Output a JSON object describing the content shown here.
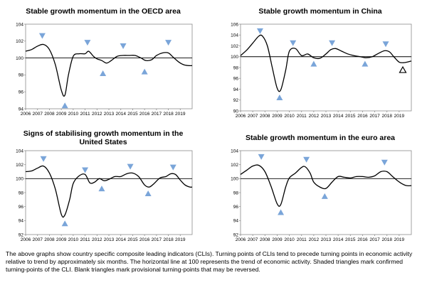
{
  "charts": [
    {
      "title": "Stable growth momentum in the OECD area",
      "chart_data": {
        "type": "line",
        "ylim": [
          94,
          104
        ],
        "yticks": [
          94,
          96,
          98,
          100,
          102,
          104
        ],
        "xlim": [
          2006,
          2020
        ],
        "xticks": [
          "2006",
          "2007",
          "2008",
          "2009",
          "2010",
          "2011",
          "2012",
          "2013",
          "2014",
          "2015",
          "2016",
          "2017",
          "2018",
          "2019"
        ],
        "baseline": 100,
        "series": [
          {
            "x": [
              2006.0,
              2006.5,
              2007.0,
              2007.5,
              2008.0,
              2008.5,
              2009.0,
              2009.3,
              2009.6,
              2010.0,
              2010.5,
              2011.0,
              2011.3,
              2011.7,
              2012.0,
              2012.4,
              2012.8,
              2013.2,
              2013.7,
              2014.2,
              2014.7,
              2015.2,
              2015.7,
              2016.1,
              2016.6,
              2017.0,
              2017.5,
              2018.0,
              2018.4,
              2018.9,
              2019.3,
              2019.7,
              2020.0
            ],
            "y": [
              100.8,
              101.0,
              101.4,
              101.6,
              101.0,
              99.2,
              96.2,
              95.6,
              98.0,
              100.2,
              100.5,
              100.5,
              100.8,
              100.2,
              99.9,
              99.7,
              99.4,
              99.7,
              100.2,
              100.3,
              100.3,
              100.3,
              100.0,
              99.7,
              99.8,
              100.3,
              100.6,
              100.6,
              100.1,
              99.5,
              99.2,
              99.1,
              99.1
            ]
          }
        ],
        "markers": [
          {
            "x": 2007.4,
            "y": 102.6,
            "dir": "down",
            "style": "filled"
          },
          {
            "x": 2009.3,
            "y": 94.4,
            "dir": "up",
            "style": "filled"
          },
          {
            "x": 2011.2,
            "y": 101.8,
            "dir": "down",
            "style": "filled"
          },
          {
            "x": 2012.5,
            "y": 98.2,
            "dir": "up",
            "style": "filled"
          },
          {
            "x": 2014.2,
            "y": 101.4,
            "dir": "down",
            "style": "filled"
          },
          {
            "x": 2016.0,
            "y": 98.4,
            "dir": "up",
            "style": "filled"
          },
          {
            "x": 2018.0,
            "y": 101.8,
            "dir": "down",
            "style": "filled"
          }
        ]
      }
    },
    {
      "title": "Stable growth momentum in China",
      "chart_data": {
        "type": "line",
        "ylim": [
          90,
          106
        ],
        "yticks": [
          90,
          92,
          94,
          96,
          98,
          100,
          102,
          104,
          106
        ],
        "xlim": [
          2006,
          2020
        ],
        "xticks": [
          "2006",
          "2007",
          "2008",
          "2009",
          "2010",
          "2011",
          "2012",
          "2013",
          "2014",
          "2015",
          "2016",
          "2017",
          "2018",
          "2019"
        ],
        "baseline": 100,
        "series": [
          {
            "x": [
              2006.0,
              2006.5,
              2007.0,
              2007.5,
              2007.8,
              2008.2,
              2008.6,
              2009.0,
              2009.3,
              2009.7,
              2010.0,
              2010.5,
              2011.0,
              2011.5,
              2012.0,
              2012.5,
              2013.0,
              2013.4,
              2013.8,
              2014.3,
              2014.8,
              2015.3,
              2015.8,
              2016.3,
              2016.8,
              2017.3,
              2017.8,
              2018.2,
              2018.6,
              2019.0,
              2019.4,
              2020.0
            ],
            "y": [
              100.2,
              101.2,
              102.5,
              103.8,
              103.8,
              102.0,
              98.0,
              94.2,
              93.9,
              97.5,
              101.0,
              101.5,
              100.2,
              100.5,
              99.8,
              99.7,
              100.5,
              101.3,
              101.5,
              101.0,
              100.5,
              100.2,
              100.0,
              99.8,
              100.0,
              100.6,
              101.1,
              100.9,
              99.9,
              99.0,
              98.9,
              99.2
            ]
          }
        ],
        "markers": [
          {
            "x": 2007.6,
            "y": 104.7,
            "dir": "down",
            "style": "filled"
          },
          {
            "x": 2009.2,
            "y": 92.5,
            "dir": "up",
            "style": "filled"
          },
          {
            "x": 2010.3,
            "y": 102.5,
            "dir": "down",
            "style": "filled"
          },
          {
            "x": 2012.0,
            "y": 98.7,
            "dir": "up",
            "style": "filled"
          },
          {
            "x": 2013.5,
            "y": 102.5,
            "dir": "down",
            "style": "filled"
          },
          {
            "x": 2016.2,
            "y": 98.7,
            "dir": "up",
            "style": "filled"
          },
          {
            "x": 2017.9,
            "y": 102.3,
            "dir": "down",
            "style": "filled"
          },
          {
            "x": 2019.3,
            "y": 97.6,
            "dir": "up",
            "style": "open"
          }
        ]
      }
    },
    {
      "title": "Signs of stabilising growth momentum in the United States",
      "chart_data": {
        "type": "line",
        "ylim": [
          92,
          104
        ],
        "yticks": [
          92,
          94,
          96,
          98,
          100,
          102,
          104
        ],
        "xlim": [
          2006,
          2020
        ],
        "xticks": [
          "2006",
          "2007",
          "2008",
          "2009",
          "2010",
          "2011",
          "2012",
          "2013",
          "2014",
          "2015",
          "2016",
          "2017",
          "2018",
          "2019"
        ],
        "baseline": 100,
        "series": [
          {
            "x": [
              2006.0,
              2006.5,
              2007.0,
              2007.5,
              2008.0,
              2008.5,
              2009.0,
              2009.3,
              2009.7,
              2010.0,
              2010.5,
              2011.0,
              2011.4,
              2011.8,
              2012.2,
              2012.6,
              2013.0,
              2013.5,
              2014.0,
              2014.5,
              2015.0,
              2015.5,
              2016.0,
              2016.4,
              2016.8,
              2017.3,
              2017.8,
              2018.2,
              2018.6,
              2019.0,
              2019.4,
              2019.8,
              2020.0
            ],
            "y": [
              101.0,
              101.1,
              101.5,
              101.8,
              100.8,
              98.5,
              94.9,
              94.8,
              97.0,
              99.3,
              100.4,
              100.6,
              99.4,
              99.5,
              100.0,
              99.7,
              99.9,
              100.3,
              100.3,
              100.7,
              100.8,
              100.3,
              99.1,
              98.8,
              99.3,
              100.1,
              100.3,
              100.7,
              100.6,
              99.8,
              99.1,
              98.8,
              98.8
            ]
          }
        ],
        "markers": [
          {
            "x": 2007.5,
            "y": 102.8,
            "dir": "down",
            "style": "filled"
          },
          {
            "x": 2009.3,
            "y": 93.6,
            "dir": "up",
            "style": "filled"
          },
          {
            "x": 2011.0,
            "y": 101.2,
            "dir": "down",
            "style": "filled"
          },
          {
            "x": 2012.4,
            "y": 98.6,
            "dir": "up",
            "style": "filled"
          },
          {
            "x": 2014.8,
            "y": 101.7,
            "dir": "down",
            "style": "filled"
          },
          {
            "x": 2016.3,
            "y": 97.9,
            "dir": "up",
            "style": "filled"
          },
          {
            "x": 2018.4,
            "y": 101.6,
            "dir": "down",
            "style": "filled"
          }
        ]
      }
    },
    {
      "title": "Stable growth momentum in the euro area",
      "chart_data": {
        "type": "line",
        "ylim": [
          92,
          104
        ],
        "yticks": [
          92,
          94,
          96,
          98,
          100,
          102,
          104
        ],
        "xlim": [
          2006,
          2020
        ],
        "xticks": [
          "2006",
          "2007",
          "2008",
          "2009",
          "2010",
          "2011",
          "2012",
          "2013",
          "2014",
          "2015",
          "2016",
          "2017",
          "2018",
          "2019"
        ],
        "baseline": 100,
        "series": [
          {
            "x": [
              2006.0,
              2006.5,
              2007.0,
              2007.5,
              2008.0,
              2008.5,
              2009.0,
              2009.3,
              2009.7,
              2010.0,
              2010.5,
              2011.0,
              2011.3,
              2011.7,
              2012.0,
              2012.5,
              2013.0,
              2013.5,
              2014.0,
              2014.5,
              2015.0,
              2015.5,
              2016.0,
              2016.5,
              2017.0,
              2017.5,
              2018.0,
              2018.4,
              2018.8,
              2019.2,
              2019.6,
              2020.0
            ],
            "y": [
              100.6,
              101.2,
              101.8,
              101.9,
              101.0,
              98.9,
              96.4,
              96.3,
              98.8,
              100.1,
              100.8,
              101.6,
              101.7,
              100.8,
              99.5,
              98.8,
              98.6,
              99.5,
              100.3,
              100.2,
              100.1,
              100.3,
              100.3,
              100.2,
              100.4,
              101.0,
              101.0,
              100.4,
              99.8,
              99.3,
              99.0,
              99.0
            ]
          }
        ],
        "markers": [
          {
            "x": 2007.7,
            "y": 103.1,
            "dir": "down",
            "style": "filled"
          },
          {
            "x": 2009.3,
            "y": 95.2,
            "dir": "up",
            "style": "filled"
          },
          {
            "x": 2011.4,
            "y": 102.7,
            "dir": "down",
            "style": "filled"
          },
          {
            "x": 2012.9,
            "y": 97.5,
            "dir": "up",
            "style": "filled"
          },
          {
            "x": 2017.8,
            "y": 102.3,
            "dir": "down",
            "style": "filled"
          }
        ]
      }
    }
  ],
  "caption": "The above graphs show country specific composite leading indicators (CLIs). Turning points of CLIs tend to precede turning points in economic activity relative to trend by approximately six months. The horizontal line at 100 represents the trend of economic activity. Shaded triangles mark confirmed turning-points of the CLI. Blank triangles mark provisional turning-points that may be reversed.",
  "colors": {
    "series": "#000000",
    "marker_fill": "#7aa5d9",
    "baseline": "#000000",
    "frame": "#8c8c8c"
  }
}
